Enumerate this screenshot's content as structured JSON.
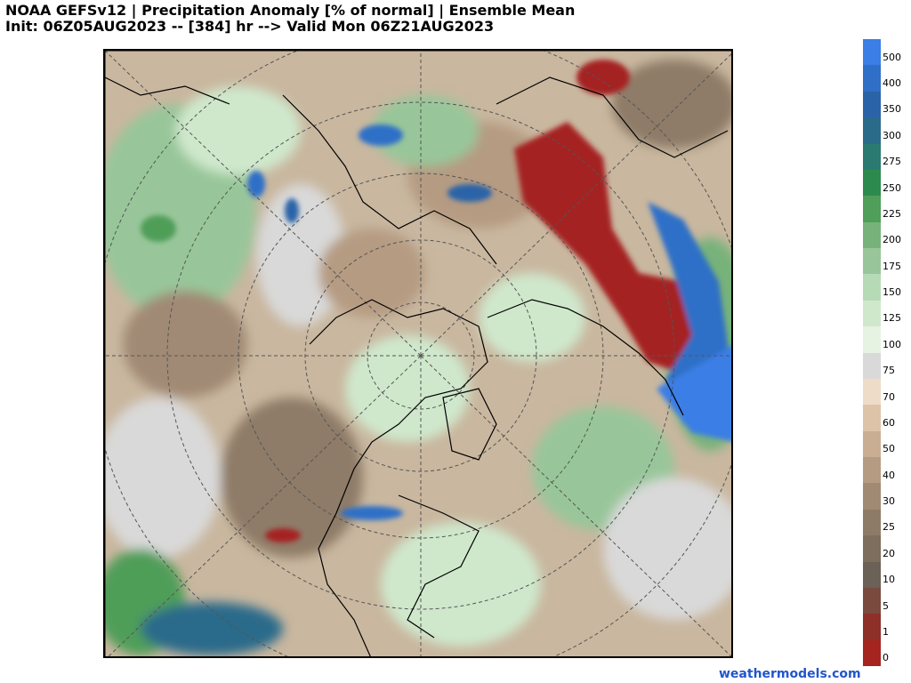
{
  "header": {
    "line1": "NOAA GEFSv12 | Precipitation Anomaly [% of normal] | Ensemble Mean",
    "line2": "Init: 06Z05AUG2023 -- [384] hr --> Valid Mon 06Z21AUG2023"
  },
  "colorbar": {
    "labels": [
      "500",
      "400",
      "350",
      "300",
      "275",
      "250",
      "225",
      "200",
      "175",
      "150",
      "125",
      "100",
      "75",
      "70",
      "60",
      "50",
      "40",
      "30",
      "25",
      "20",
      "10",
      "5",
      "1",
      "0"
    ],
    "colors": [
      "#3a7ee6",
      "#2f6fc7",
      "#2b63a8",
      "#2b6b8a",
      "#2a7a72",
      "#2d8a4f",
      "#4f9e59",
      "#77b27a",
      "#98c69a",
      "#b7dab6",
      "#cfe8cc",
      "#e6f2e2",
      "#d9d9d9",
      "#efdcc8",
      "#ddc3a8",
      "#c9ae93",
      "#b59b82",
      "#a18a74",
      "#8e7b67",
      "#7d6e5d",
      "#6b6156",
      "#7a4a3e",
      "#8e2f28",
      "#a52420"
    ]
  },
  "watermark": "weathermodels.com",
  "map": {
    "colors": {
      "base": "#c9b79f",
      "deep_red": "#a52420",
      "blue": "#2f6fc7",
      "light_green": "#cfe8cc",
      "green": "#77b27a",
      "gray": "#d9d9d9",
      "dark_brown": "#8e7b67"
    }
  }
}
